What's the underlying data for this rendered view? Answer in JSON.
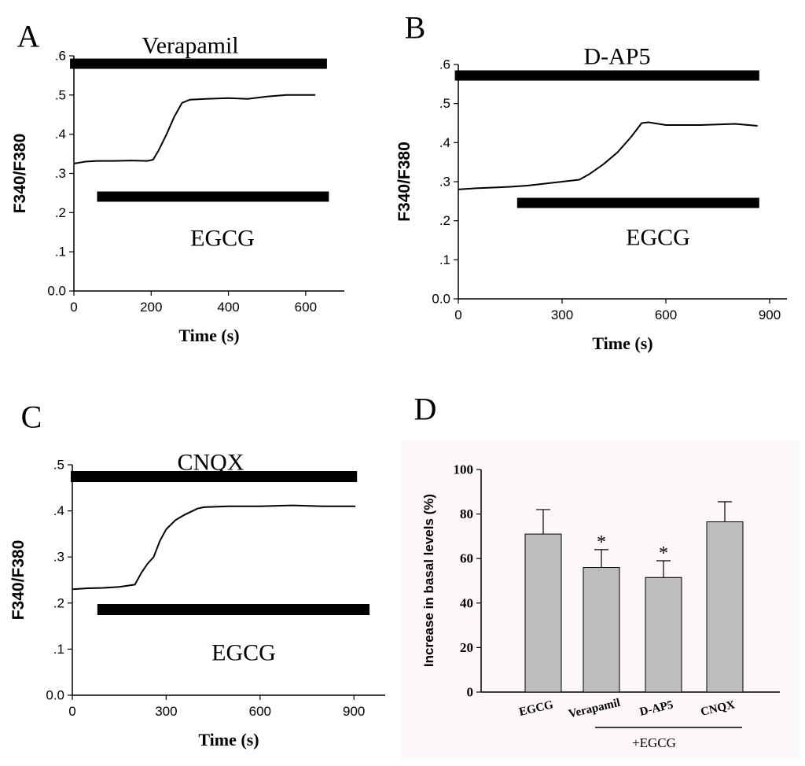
{
  "colors": {
    "ink": "#000000",
    "bar_fill": "#bdbdbd",
    "panel_d_bg": "#fdf8f8"
  },
  "chart_data": [
    {
      "panel": "A",
      "type": "line",
      "drug": "Verapamil",
      "treatment": "EGCG",
      "xlabel": "Time (s)",
      "ylabel": "F340/F380",
      "xlim": [
        0,
        700
      ],
      "ylim": [
        0,
        0.6
      ],
      "xticks": [
        0,
        200,
        400,
        600
      ],
      "xtick_labels": [
        "0",
        "200",
        "400",
        "600"
      ],
      "yticks": [
        0,
        0.1,
        0.2,
        0.3,
        0.4,
        0.5,
        0.6
      ],
      "ytick_labels": [
        "0.0",
        ".1",
        ".2",
        ".3",
        ".4",
        ".5",
        ".6"
      ],
      "drug_bar_range": [
        -10,
        655
      ],
      "treatment_bar_range": [
        60,
        660
      ],
      "series": [
        {
          "name": "trace",
          "x": [
            0,
            30,
            60,
            100,
            150,
            190,
            205,
            220,
            240,
            260,
            280,
            300,
            340,
            400,
            450,
            500,
            550,
            600,
            625
          ],
          "y": [
            0.325,
            0.33,
            0.332,
            0.332,
            0.333,
            0.332,
            0.335,
            0.36,
            0.4,
            0.445,
            0.48,
            0.488,
            0.49,
            0.492,
            0.49,
            0.496,
            0.5,
            0.5,
            0.5
          ]
        }
      ]
    },
    {
      "panel": "B",
      "type": "line",
      "drug": "D-AP5",
      "treatment": "EGCG",
      "xlabel": "Time (s)",
      "ylabel": "F340/F380",
      "xlim": [
        0,
        950
      ],
      "ylim": [
        0,
        0.6
      ],
      "xticks": [
        0,
        300,
        600,
        900
      ],
      "xtick_labels": [
        "0",
        "300",
        "600",
        "900"
      ],
      "yticks": [
        0,
        0.1,
        0.2,
        0.3,
        0.4,
        0.5,
        0.6
      ],
      "ytick_labels": [
        "0.0",
        ".1",
        ".2",
        ".3",
        ".4",
        ".5",
        ".6"
      ],
      "drug_bar_range": [
        -10,
        870
      ],
      "treatment_bar_range": [
        170,
        870
      ],
      "series": [
        {
          "name": "trace",
          "x": [
            0,
            50,
            100,
            150,
            200,
            250,
            300,
            350,
            380,
            420,
            460,
            500,
            530,
            550,
            600,
            700,
            800,
            865
          ],
          "y": [
            0.28,
            0.283,
            0.285,
            0.287,
            0.29,
            0.295,
            0.3,
            0.305,
            0.32,
            0.345,
            0.375,
            0.415,
            0.45,
            0.452,
            0.445,
            0.445,
            0.448,
            0.443
          ]
        }
      ]
    },
    {
      "panel": "C",
      "type": "line",
      "drug": "CNQX",
      "treatment": "EGCG",
      "xlabel": "Time (s)",
      "ylabel": "F340/F380",
      "xlim": [
        0,
        1000
      ],
      "ylim": [
        0,
        0.5
      ],
      "xticks": [
        0,
        300,
        600,
        900
      ],
      "xtick_labels": [
        "0",
        "300",
        "600",
        "900"
      ],
      "yticks": [
        0,
        0.1,
        0.2,
        0.3,
        0.4,
        0.5
      ],
      "ytick_labels": [
        "0.0",
        ".1",
        ".2",
        ".3",
        ".4",
        ".5"
      ],
      "drug_bar_range": [
        -5,
        910
      ],
      "treatment_bar_range": [
        80,
        950
      ],
      "series": [
        {
          "name": "trace",
          "x": [
            0,
            50,
            100,
            150,
            200,
            220,
            240,
            260,
            280,
            300,
            330,
            360,
            400,
            420,
            500,
            600,
            700,
            800,
            905
          ],
          "y": [
            0.23,
            0.232,
            0.233,
            0.235,
            0.24,
            0.265,
            0.285,
            0.3,
            0.335,
            0.36,
            0.38,
            0.392,
            0.405,
            0.408,
            0.41,
            0.41,
            0.412,
            0.41,
            0.41
          ]
        }
      ]
    },
    {
      "panel": "D",
      "type": "bar",
      "categories": [
        "EGCG",
        "Verapamil",
        "D-AP5",
        "CNQX"
      ],
      "values": [
        71,
        56,
        51.5,
        76.5
      ],
      "errors": [
        11,
        8,
        7.5,
        9
      ],
      "significance": [
        "",
        "*",
        "*",
        ""
      ],
      "ylabel": "Increase in basal levels (%)",
      "ylim": [
        0,
        100
      ],
      "yticks": [
        0,
        20,
        40,
        60,
        80,
        100
      ],
      "ytick_labels": [
        "0",
        "20",
        "40",
        "60",
        "80",
        "100"
      ],
      "group_label": "+EGCG",
      "group_categories": [
        "Verapamil",
        "D-AP5",
        "CNQX"
      ]
    }
  ]
}
